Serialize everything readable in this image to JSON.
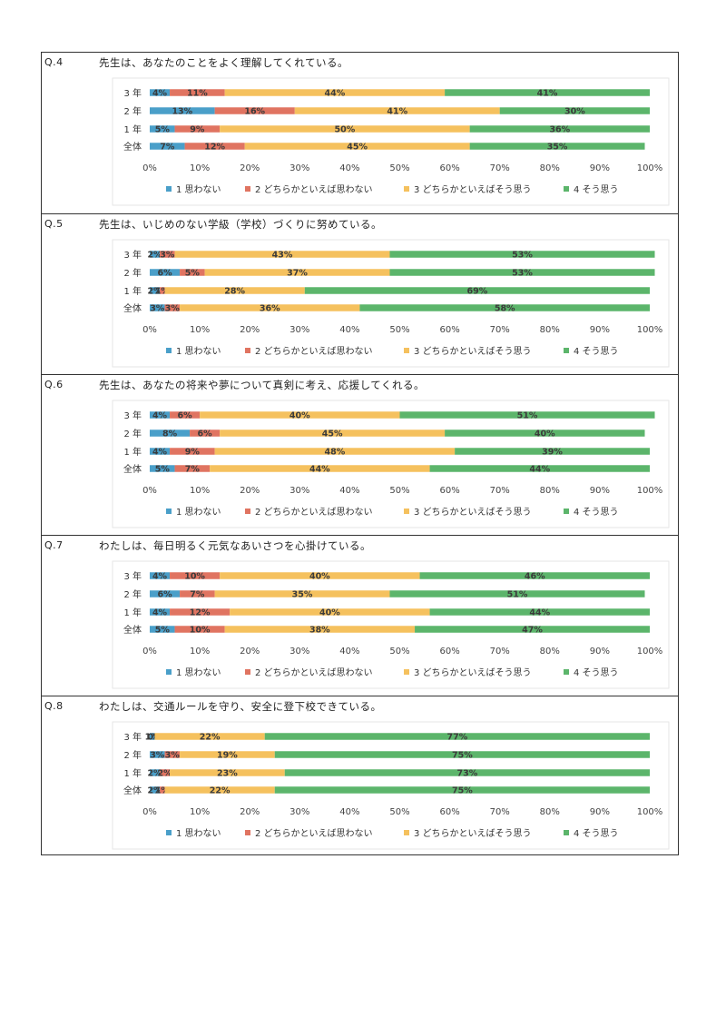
{
  "colors": {
    "s1": "#4a9fc9",
    "s2": "#e07461",
    "s3": "#f5c15e",
    "s4": "#5cb56b",
    "plotBorder": "#e6e6e6"
  },
  "questions": [
    {
      "num": "Q.4",
      "title": "先生は、あなたのことをよく理解してくれている。"
    },
    {
      "num": "Q.5",
      "title": "先生は、いじめのない学級（学校）づくりに努めている。"
    },
    {
      "num": "Q.6",
      "title": "先生は、あなたの将来や夢について真剣に考え、応援してくれる。"
    },
    {
      "num": "Q.7",
      "title": "わたしは、毎日明るく元気なあいさつを心掛けている。"
    },
    {
      "num": "Q.8",
      "title": "わたしは、交通ルールを守り、安全に登下校できている。"
    }
  ],
  "chart_data": [
    {
      "type": "bar",
      "stacked": true,
      "orientation": "horizontal",
      "categories": [
        "3 年",
        "2 年",
        "1 年",
        "全体"
      ],
      "xticks": [
        "0%",
        "10%",
        "20%",
        "30%",
        "40%",
        "50%",
        "60%",
        "70%",
        "80%",
        "90%",
        "100%"
      ],
      "xlim": [
        0,
        100
      ],
      "series": [
        {
          "name": "1 思わない",
          "values": [
            4,
            13,
            5,
            7
          ]
        },
        {
          "name": "2 どちらかといえば思わない",
          "values": [
            11,
            16,
            9,
            12
          ]
        },
        {
          "name": "3 どちらかといえばそう思う",
          "values": [
            44,
            41,
            50,
            45
          ]
        },
        {
          "name": "4 そう思う",
          "values": [
            41,
            30,
            36,
            35
          ]
        }
      ],
      "legend": "bottom"
    },
    {
      "type": "bar",
      "stacked": true,
      "orientation": "horizontal",
      "categories": [
        "3 年",
        "2 年",
        "1 年",
        "全体"
      ],
      "xticks": [
        "0%",
        "10%",
        "20%",
        "30%",
        "40%",
        "50%",
        "60%",
        "70%",
        "80%",
        "90%",
        "100%"
      ],
      "xlim": [
        0,
        100
      ],
      "series": [
        {
          "name": "1 思わない",
          "values": [
            2,
            6,
            2,
            3
          ]
        },
        {
          "name": "2 どちらかといえば思わない",
          "values": [
            3,
            5,
            1,
            3
          ]
        },
        {
          "name": "3 どちらかといえばそう思う",
          "values": [
            43,
            37,
            28,
            36
          ]
        },
        {
          "name": "4 そう思う",
          "values": [
            53,
            53,
            69,
            58
          ]
        }
      ],
      "legend": "bottom"
    },
    {
      "type": "bar",
      "stacked": true,
      "orientation": "horizontal",
      "categories": [
        "3 年",
        "2 年",
        "1 年",
        "全体"
      ],
      "xticks": [
        "0%",
        "10%",
        "20%",
        "30%",
        "40%",
        "50%",
        "60%",
        "70%",
        "80%",
        "90%",
        "100%"
      ],
      "xlim": [
        0,
        100
      ],
      "series": [
        {
          "name": "1 思わない",
          "values": [
            4,
            8,
            4,
            5
          ]
        },
        {
          "name": "2 どちらかといえば思わない",
          "values": [
            6,
            6,
            9,
            7
          ]
        },
        {
          "name": "3 どちらかといえばそう思う",
          "values": [
            40,
            45,
            48,
            44
          ]
        },
        {
          "name": "4 そう思う",
          "values": [
            51,
            40,
            39,
            44
          ]
        }
      ],
      "legend": "bottom"
    },
    {
      "type": "bar",
      "stacked": true,
      "orientation": "horizontal",
      "categories": [
        "3 年",
        "2 年",
        "1 年",
        "全体"
      ],
      "xticks": [
        "0%",
        "10%",
        "20%",
        "30%",
        "40%",
        "50%",
        "60%",
        "70%",
        "80%",
        "90%",
        "100%"
      ],
      "xlim": [
        0,
        100
      ],
      "series": [
        {
          "name": "1 思わない",
          "values": [
            4,
            6,
            4,
            5
          ]
        },
        {
          "name": "2 どちらかといえば思わない",
          "values": [
            10,
            7,
            12,
            10
          ]
        },
        {
          "name": "3 どちらかといえばそう思う",
          "values": [
            40,
            35,
            40,
            38
          ]
        },
        {
          "name": "4 そう思う",
          "values": [
            46,
            51,
            44,
            47
          ]
        }
      ],
      "legend": "bottom"
    },
    {
      "type": "bar",
      "stacked": true,
      "orientation": "horizontal",
      "categories": [
        "3 年",
        "2 年",
        "1 年",
        "全体"
      ],
      "xticks": [
        "0%",
        "10%",
        "20%",
        "30%",
        "40%",
        "50%",
        "60%",
        "70%",
        "80%",
        "90%",
        "100%"
      ],
      "xlim": [
        0,
        100
      ],
      "series": [
        {
          "name": "1 思わない",
          "values": [
            1,
            3,
            2,
            2
          ]
        },
        {
          "name": "2 どちらかといえば思わない",
          "values": [
            0,
            3,
            2,
            1
          ]
        },
        {
          "name": "3 どちらかといえばそう思う",
          "values": [
            22,
            19,
            23,
            22
          ]
        },
        {
          "name": "4 そう思う",
          "values": [
            77,
            75,
            73,
            75
          ]
        }
      ],
      "legend": "bottom"
    }
  ]
}
